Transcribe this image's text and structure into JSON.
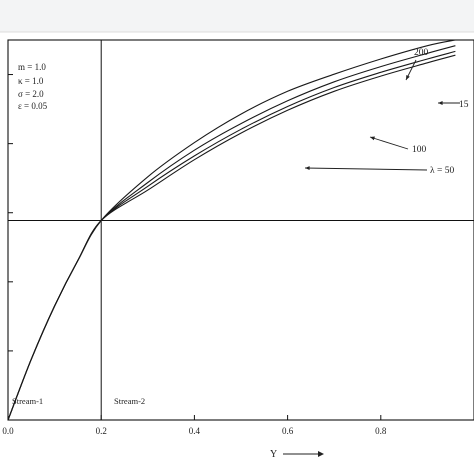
{
  "chart_data": {
    "type": "line",
    "xlabel": "Y",
    "ylabel": "",
    "xlim": [
      0.0,
      1.0
    ],
    "ylim": [
      0.0,
      1.0
    ],
    "x_ticks": [
      "0.0",
      "0.2",
      "0.4",
      "0.6",
      "0.8"
    ],
    "grid": false,
    "parameters": [
      "m = 1.0",
      "κ = 1.0",
      "σ = 2.0",
      "ε = 0.05"
    ],
    "interface_x": 0.2,
    "reference_y": 0.525,
    "stream_labels": [
      "Stream-1",
      "Stream-2"
    ],
    "series": [
      {
        "name": "200",
        "x": [
          0.0,
          0.05,
          0.1,
          0.15,
          0.2,
          0.3,
          0.4,
          0.5,
          0.6,
          0.7,
          0.8,
          0.9,
          0.96
        ],
        "y": [
          0.0,
          0.16,
          0.3,
          0.42,
          0.525,
          0.64,
          0.73,
          0.805,
          0.865,
          0.91,
          0.95,
          0.985,
          1.0
        ]
      },
      {
        "name": "15",
        "x": [
          0.0,
          0.05,
          0.1,
          0.15,
          0.2,
          0.3,
          0.4,
          0.5,
          0.6,
          0.7,
          0.8,
          0.9,
          0.96
        ],
        "y": [
          0.0,
          0.16,
          0.3,
          0.42,
          0.525,
          0.625,
          0.71,
          0.78,
          0.84,
          0.89,
          0.93,
          0.965,
          0.985
        ]
      },
      {
        "name": "100",
        "x": [
          0.0,
          0.05,
          0.1,
          0.15,
          0.2,
          0.3,
          0.4,
          0.5,
          0.6,
          0.7,
          0.8,
          0.9,
          0.96
        ],
        "y": [
          0.0,
          0.16,
          0.3,
          0.42,
          0.525,
          0.615,
          0.695,
          0.765,
          0.825,
          0.875,
          0.915,
          0.95,
          0.97
        ]
      },
      {
        "name": "λ = 50",
        "x": [
          0.0,
          0.05,
          0.1,
          0.15,
          0.2,
          0.3,
          0.4,
          0.5,
          0.6,
          0.7,
          0.8,
          0.9,
          0.96
        ],
        "y": [
          0.0,
          0.16,
          0.3,
          0.42,
          0.525,
          0.605,
          0.685,
          0.755,
          0.815,
          0.865,
          0.905,
          0.94,
          0.96
        ]
      }
    ]
  }
}
